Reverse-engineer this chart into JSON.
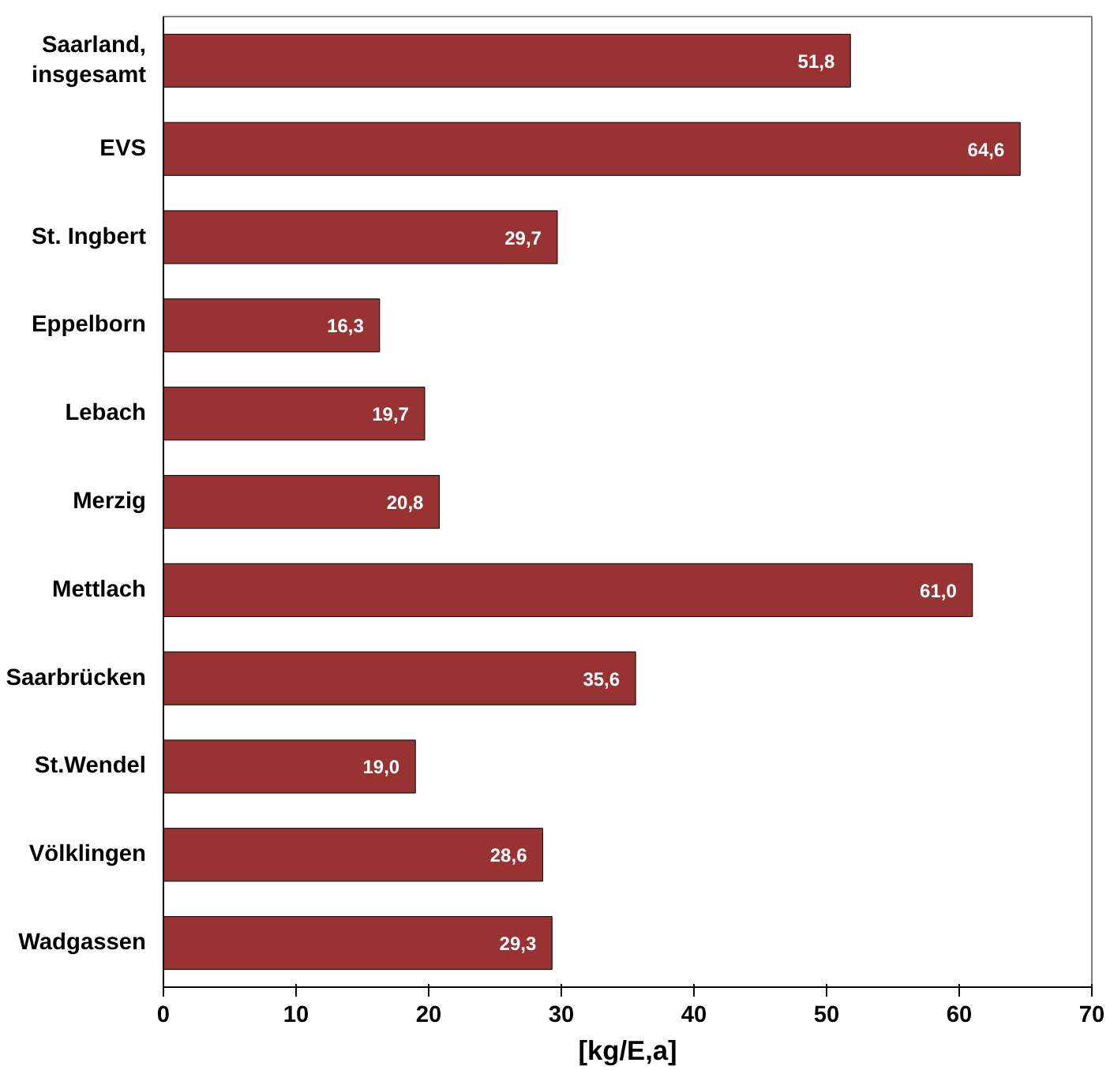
{
  "chart_data": {
    "type": "bar",
    "orientation": "horizontal",
    "xlabel": "[kg/E,a]",
    "categories": [
      "Saarland,\ninsgesamt",
      "EVS",
      "St. Ingbert",
      "Eppelborn",
      "Lebach",
      "Merzig",
      "Mettlach",
      "Saarbrücken",
      "St.Wendel",
      "Völklingen",
      "Wadgassen"
    ],
    "values": [
      51.8,
      64.6,
      29.7,
      16.3,
      19.7,
      20.8,
      61.0,
      35.6,
      19.0,
      28.6,
      29.3
    ],
    "value_labels": [
      "51,8",
      "64,6",
      "29,7",
      "16,3",
      "19,7",
      "20,8",
      "61,0",
      "35,6",
      "19,0",
      "28,6",
      "29,3"
    ],
    "color": "#993333",
    "xlim": [
      0,
      70
    ],
    "xticks": [
      0,
      10,
      20,
      30,
      40,
      50,
      60,
      70
    ],
    "grid": false
  }
}
